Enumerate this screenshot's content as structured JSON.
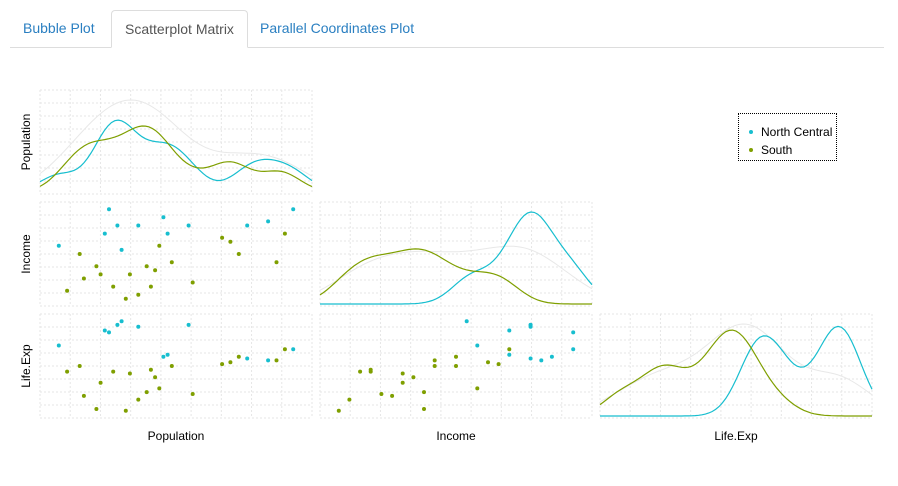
{
  "tabs": [
    {
      "label": "Bubble Plot",
      "active": false
    },
    {
      "label": "Scatterplot Matrix",
      "active": true
    },
    {
      "label": "Parallel Coordinates Plot",
      "active": false
    }
  ],
  "colors": {
    "North Central": "#17becf",
    "South": "#7f9f00",
    "background_points": "#e8e8e8",
    "grid": "#e6e6e6"
  },
  "chart_data": {
    "type": "scatter",
    "variables": [
      "Population",
      "Income",
      "Life.Exp"
    ],
    "legend": {
      "position": "top-right",
      "entries": [
        "North Central",
        "South"
      ]
    },
    "grid": true,
    "highlighted_groups": [
      "North Central",
      "South"
    ],
    "series": [
      {
        "name": "North Central",
        "Population": [
          300,
          1400,
          1500,
          1700,
          1800,
          2200,
          2800,
          2900,
          3400,
          4800,
          5300,
          5900
        ],
        "Income": [
          4400,
          4700,
          5300,
          4900,
          4300,
          4900,
          5100,
          4700,
          4900,
          4900,
          5000,
          5300
        ],
        "Life.Exp": [
          71.5,
          72.3,
          72.2,
          72.6,
          72.8,
          72.5,
          70.9,
          71.0,
          72.6,
          70.8,
          70.7,
          71.3
        ]
      },
      {
        "name": "South",
        "Population": [
          500,
          800,
          900,
          1200,
          1300,
          1600,
          1900,
          2000,
          2200,
          2400,
          2500,
          2600,
          2700,
          3000,
          3500,
          4200,
          4400,
          4600,
          5500,
          5700
        ],
        "Income": [
          3300,
          4200,
          3600,
          3900,
          3700,
          3400,
          3100,
          3700,
          3200,
          3900,
          3400,
          3800,
          4400,
          4000,
          3500,
          4600,
          4500,
          4200,
          4000,
          4700
        ],
        "Life.Exp": [
          70.1,
          70.4,
          68.8,
          68.1,
          69.5,
          70.1,
          68.0,
          70.0,
          68.6,
          69.0,
          70.2,
          69.8,
          69.2,
          70.4,
          68.9,
          70.5,
          70.6,
          70.9,
          70.7,
          71.3
        ]
      }
    ]
  }
}
